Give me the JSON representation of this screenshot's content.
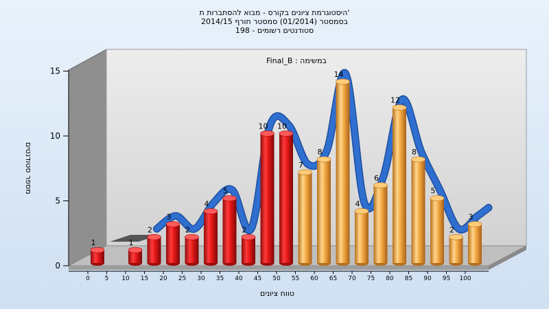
{
  "chart_data": {
    "type": "bar",
    "title_lines": [
      "היסטוגרמת ציונים בקורס - מבוא להסתברות ת'",
      "בסמסטר  (01/2014)  סמסטר חורף 2014/15",
      "198 - סטודנטים רשומים"
    ],
    "subtitle": "Final_B : במשימה",
    "xlabel": "טווח ציונים",
    "ylabel": "מספר סטודנטים",
    "ylim": [
      0,
      15
    ],
    "y_ticks": [
      "0",
      "5",
      "10",
      "15"
    ],
    "x_ticks": [
      "0",
      "5",
      "10",
      "15",
      "20",
      "25",
      "30",
      "35",
      "40",
      "45",
      "50",
      "55",
      "60",
      "65",
      "70",
      "75",
      "80",
      "85",
      "90",
      "95",
      "100"
    ],
    "grid": false,
    "legend": "none",
    "bars": [
      {
        "x": 0,
        "value": 1,
        "color": "red"
      },
      {
        "x": 5,
        "value": 0,
        "color": "red"
      },
      {
        "x": 10,
        "value": 1,
        "color": "red"
      },
      {
        "x": 15,
        "value": 2,
        "color": "red"
      },
      {
        "x": 20,
        "value": 3,
        "color": "red"
      },
      {
        "x": 25,
        "value": 2,
        "color": "red"
      },
      {
        "x": 30,
        "value": 4,
        "color": "red"
      },
      {
        "x": 35,
        "value": 5,
        "color": "red"
      },
      {
        "x": 40,
        "value": 2,
        "color": "red"
      },
      {
        "x": 45,
        "value": 10,
        "color": "red"
      },
      {
        "x": 50,
        "value": 10,
        "color": "red"
      },
      {
        "x": 55,
        "value": 7,
        "color": "orange"
      },
      {
        "x": 60,
        "value": 8,
        "color": "orange"
      },
      {
        "x": 65,
        "value": 14,
        "color": "orange"
      },
      {
        "x": 70,
        "value": 4,
        "color": "orange"
      },
      {
        "x": 75,
        "value": 6,
        "color": "orange"
      },
      {
        "x": 80,
        "value": 12,
        "color": "orange"
      },
      {
        "x": 85,
        "value": 8,
        "color": "orange"
      },
      {
        "x": 90,
        "value": 5,
        "color": "orange"
      },
      {
        "x": 95,
        "value": 2,
        "color": "orange"
      },
      {
        "x": 100,
        "value": 3,
        "color": "orange"
      }
    ],
    "series_colors": {
      "fail": "#e21a1a",
      "pass": "#f0a73c",
      "trend": "#2f6fd0"
    }
  }
}
